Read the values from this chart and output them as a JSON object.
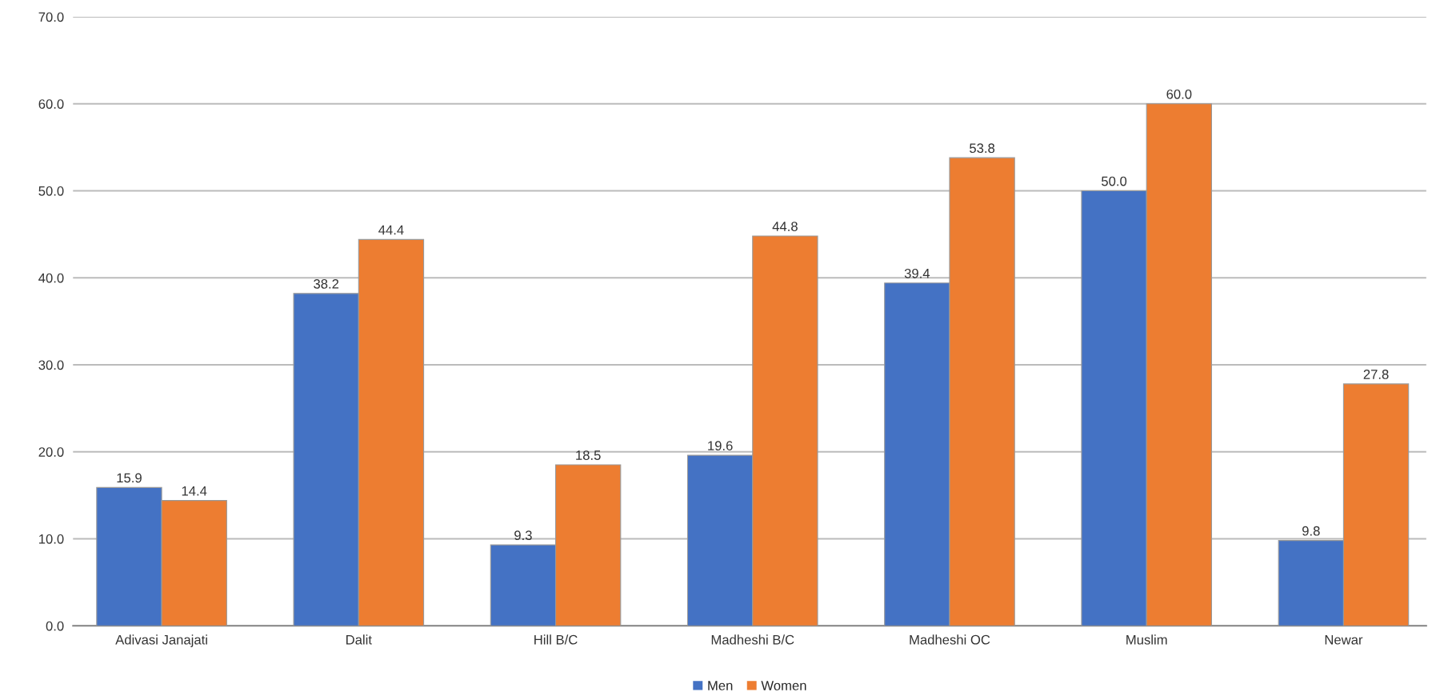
{
  "chart_data": {
    "type": "bar",
    "categories": [
      "Adivasi Janajati",
      "Dalit",
      "Hill B/C",
      "Madheshi B/C",
      "Madheshi OC",
      "Muslim",
      "Newar"
    ],
    "series": [
      {
        "name": "Men",
        "color": "#4472c4",
        "values": [
          15.9,
          38.2,
          9.3,
          19.6,
          39.4,
          50.0,
          9.8
        ],
        "value_labels": [
          "15.9",
          "38.2",
          "9.3",
          "19.6",
          "39.4",
          "50.0",
          "9.8"
        ]
      },
      {
        "name": "Women",
        "color": "#ed7d31",
        "values": [
          14.4,
          44.4,
          18.5,
          44.8,
          53.8,
          60.0,
          27.8
        ],
        "value_labels": [
          "14.4",
          "44.4",
          "18.5",
          "44.8",
          "53.8",
          "60.0",
          "27.8"
        ]
      }
    ],
    "ylim": [
      0,
      70
    ],
    "yticks": [
      {
        "value": 0,
        "label": "0.0"
      },
      {
        "value": 10,
        "label": "10.0"
      },
      {
        "value": 20,
        "label": "20.0"
      },
      {
        "value": 30,
        "label": "30.0"
      },
      {
        "value": 40,
        "label": "40.0"
      },
      {
        "value": 50,
        "label": "50.0"
      },
      {
        "value": 60,
        "label": "60.0"
      },
      {
        "value": 70,
        "label": "70.0"
      }
    ],
    "grid": "y",
    "legend": "bottom"
  }
}
